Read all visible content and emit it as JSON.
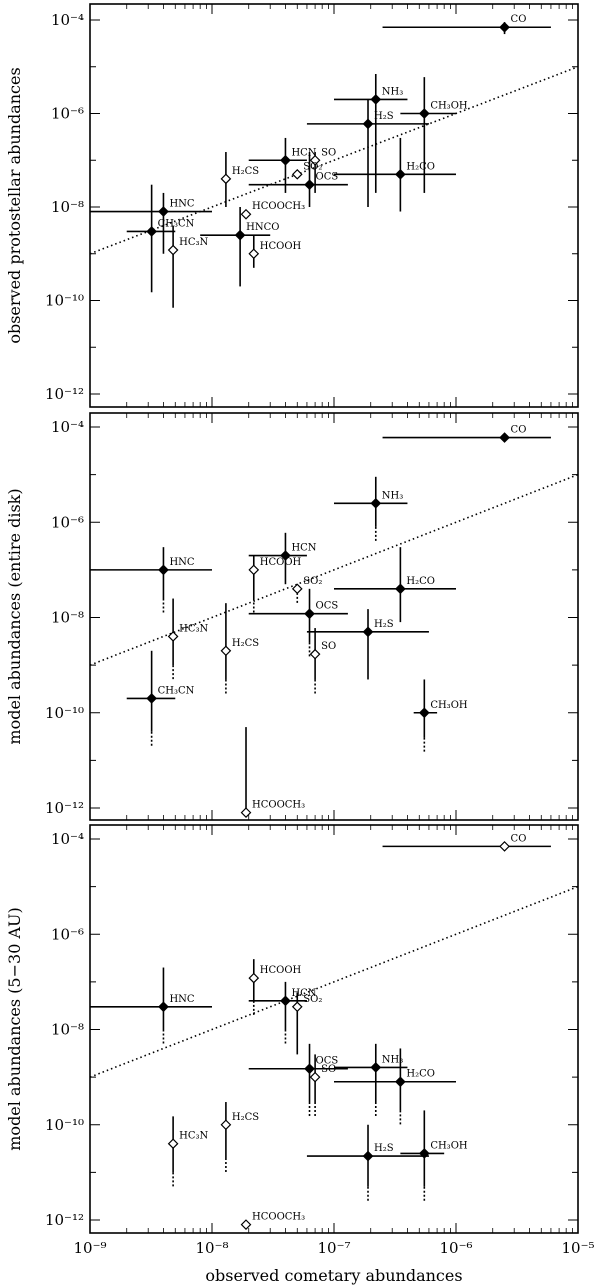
{
  "chart_data": [
    {
      "type": "scatter",
      "ylabel": "observed protostellar abundances",
      "xscale": "log",
      "yscale": "log",
      "xlim": [
        1e-09,
        1e-05
      ],
      "ylim": [
        1e-13,
        0.0001
      ],
      "reference_line": "y = x (dotted)",
      "points": [
        {
          "name": "CO",
          "x": 2.5e-06,
          "y": 7e-05,
          "xerr": [
            2.5e-07,
            6e-06
          ],
          "yerr": [
            5e-05,
            9e-05
          ],
          "open": false
        },
        {
          "name": "NH₃",
          "x": 2.2e-07,
          "y": 2e-06,
          "xerr": [
            1e-07,
            4e-07
          ],
          "yerr": [
            2e-08,
            7e-06
          ],
          "open": false
        },
        {
          "name": "H₂S",
          "x": 1.9e-07,
          "y": 6e-07,
          "xerr": [
            6e-08,
            6e-07
          ],
          "yerr": [
            1e-08,
            2e-06
          ],
          "open": false
        },
        {
          "name": "CH₃OH",
          "x": 5.5e-07,
          "y": 1e-06,
          "xerr": [
            3.5e-07,
            1e-06
          ],
          "yerr": [
            2e-08,
            6e-06
          ],
          "open": false
        },
        {
          "name": "H₂CO",
          "x": 3.5e-07,
          "y": 5e-08,
          "xerr": [
            1e-07,
            1e-06
          ],
          "yerr": [
            8e-09,
            3e-07
          ],
          "open": false
        },
        {
          "name": "HCN",
          "x": 4e-08,
          "y": 1e-07,
          "xerr": [
            2e-08,
            6e-08
          ],
          "yerr": [
            2e-08,
            3e-07
          ],
          "open": false
        },
        {
          "name": "SO",
          "x": 7e-08,
          "y": 1e-07,
          "xerr": null,
          "yerr": [
            2e-08,
            1.5e-07
          ],
          "open": true
        },
        {
          "name": "SO₂",
          "x": 5e-08,
          "y": 5e-08,
          "xerr": null,
          "yerr": null,
          "open": true
        },
        {
          "name": "OCS",
          "x": 6.3e-08,
          "y": 3e-08,
          "xerr": [
            2e-08,
            1.3e-07
          ],
          "yerr": [
            1e-08,
            1.5e-07
          ],
          "open": false
        },
        {
          "name": "H₂CS",
          "x": 1.3e-08,
          "y": 4e-08,
          "xerr": null,
          "yerr": [
            1e-08,
            1.5e-07
          ],
          "open": true
        },
        {
          "name": "HNC",
          "x": 4e-09,
          "y": 8e-09,
          "xerr": [
            1e-09,
            1e-08
          ],
          "yerr": [
            1e-09,
            2e-08
          ],
          "open": false
        },
        {
          "name": "CH₃CN",
          "x": 3.2e-09,
          "y": 3e-09,
          "xerr": [
            2e-09,
            5e-09
          ],
          "yerr": [
            1.5e-10,
            3e-08
          ],
          "open": false
        },
        {
          "name": "HC₃N",
          "x": 4.8e-09,
          "y": 1.2e-09,
          "xerr": null,
          "yerr": [
            7e-11,
            4e-09
          ],
          "open": true
        },
        {
          "name": "HCOOCH₃",
          "x": 1.9e-08,
          "y": 7e-09,
          "xerr": null,
          "yerr": null,
          "open": true
        },
        {
          "name": "HNCO",
          "x": 1.7e-08,
          "y": 2.5e-09,
          "xerr": [
            8e-09,
            3e-08
          ],
          "yerr": [
            2e-10,
            1e-08
          ],
          "open": false
        },
        {
          "name": "HCOOH",
          "x": 2.2e-08,
          "y": 1e-09,
          "xerr": null,
          "yerr": [
            5e-10,
            2.5e-09
          ],
          "open": true
        }
      ]
    },
    {
      "type": "scatter",
      "ylabel": "model abundances (entire disk)",
      "xscale": "log",
      "yscale": "log",
      "xlim": [
        1e-09,
        1e-05
      ],
      "ylim": [
        5e-13,
        0.0002
      ],
      "reference_line": "y = x (dotted)",
      "points": [
        {
          "name": "CO",
          "x": 2.5e-06,
          "y": 6e-05,
          "xerr": [
            2.5e-07,
            6e-06
          ],
          "yerr": null,
          "open": false
        },
        {
          "name": "NH₃",
          "x": 2.2e-07,
          "y": 2.5e-06,
          "xerr": [
            1e-07,
            4e-07
          ],
          "yerr": [
            8e-07,
            9e-06
          ],
          "open": false,
          "dotted_below": true
        },
        {
          "name": "HCN",
          "x": 4e-08,
          "y": 2e-07,
          "xerr": [
            2e-08,
            6e-08
          ],
          "yerr": [
            5e-08,
            6e-07
          ],
          "open": false
        },
        {
          "name": "SO₂",
          "x": 5e-08,
          "y": 4e-08,
          "xerr": null,
          "yerr": null,
          "open": true,
          "dotted_below": true
        },
        {
          "name": "HNC",
          "x": 4e-09,
          "y": 1e-07,
          "xerr": [
            1e-09,
            1e-08
          ],
          "yerr": [
            2.5e-08,
            3e-07
          ],
          "open": false,
          "dotted_below": true
        },
        {
          "name": "HCOOH",
          "x": 2.2e-08,
          "y": 1e-07,
          "xerr": null,
          "yerr": [
            2.5e-08,
            2e-07
          ],
          "open": true,
          "dotted_below": true
        },
        {
          "name": "H₂CO",
          "x": 3.5e-07,
          "y": 4e-08,
          "xerr": [
            1e-07,
            1e-06
          ],
          "yerr": [
            8e-09,
            3e-07
          ],
          "open": false
        },
        {
          "name": "OCS",
          "x": 6.3e-08,
          "y": 1.2e-08,
          "xerr": [
            2e-08,
            1.3e-07
          ],
          "yerr": [
            3e-09,
            4e-08
          ],
          "open": false,
          "dotted_below": true
        },
        {
          "name": "H₂S",
          "x": 1.9e-07,
          "y": 5e-09,
          "xerr": [
            6e-08,
            6e-07
          ],
          "yerr": [
            5e-10,
            1.5e-08
          ],
          "open": false
        },
        {
          "name": "SO",
          "x": 7e-08,
          "y": 1.7e-09,
          "xerr": null,
          "yerr": [
            5e-10,
            6e-09
          ],
          "open": true,
          "dotted_below": true
        },
        {
          "name": "HC₃N",
          "x": 4.8e-09,
          "y": 4e-09,
          "xerr": null,
          "yerr": [
            1e-09,
            2.5e-08
          ],
          "open": true,
          "dotted_below": true
        },
        {
          "name": "H₂CS",
          "x": 1.3e-08,
          "y": 2e-09,
          "xerr": null,
          "yerr": [
            5e-10,
            2e-08
          ],
          "open": true,
          "dotted_below": true
        },
        {
          "name": "CH₃CN",
          "x": 3.2e-09,
          "y": 2e-10,
          "xerr": [
            2e-09,
            5e-09
          ],
          "yerr": [
            4e-11,
            2e-09
          ],
          "open": false,
          "dotted_below": true
        },
        {
          "name": "CH₃OH",
          "x": 5.5e-07,
          "y": 1e-10,
          "xerr": [
            4.5e-07,
            7e-07
          ],
          "yerr": [
            3e-11,
            5e-10
          ],
          "open": false,
          "dotted_below": true
        },
        {
          "name": "HCOOCH₃",
          "x": 1.9e-08,
          "y": 8e-13,
          "xerr": null,
          "yerr": [
            8e-13,
            5e-11
          ],
          "open": true
        }
      ]
    },
    {
      "type": "scatter",
      "ylabel": "model abundances (5−30 AU)",
      "xlabel": "observed cometary abundances",
      "xscale": "log",
      "yscale": "log",
      "xlim": [
        1e-09,
        1e-05
      ],
      "ylim": [
        5e-13,
        0.0002
      ],
      "reference_line": "y = x (dotted)",
      "points": [
        {
          "name": "CO",
          "x": 2.5e-06,
          "y": 7e-05,
          "xerr": [
            2.5e-07,
            6e-06
          ],
          "yerr": null,
          "open": true
        },
        {
          "name": "HCOOH",
          "x": 2.2e-08,
          "y": 1.2e-07,
          "xerr": null,
          "yerr": [
            4e-08,
            3e-07
          ],
          "open": true,
          "dotted_below": true
        },
        {
          "name": "HNC",
          "x": 4e-09,
          "y": 3e-08,
          "xerr": [
            1e-09,
            1e-08
          ],
          "yerr": [
            1e-08,
            2e-07
          ],
          "open": false,
          "dotted_below": true
        },
        {
          "name": "HCN",
          "x": 4e-08,
          "y": 4e-08,
          "xerr": [
            2e-08,
            6e-08
          ],
          "yerr": [
            1e-08,
            1e-07
          ],
          "open": false,
          "dotted_below": true
        },
        {
          "name": "SO₂",
          "x": 5e-08,
          "y": 3e-08,
          "xerr": null,
          "yerr": [
            3e-09,
            6e-08
          ],
          "open": true
        },
        {
          "name": "NH₃",
          "x": 2.2e-07,
          "y": 1.6e-09,
          "xerr": [
            1e-07,
            4e-07
          ],
          "yerr": [
            3e-10,
            5e-09
          ],
          "open": false,
          "dotted_below": true
        },
        {
          "name": "H₂CO",
          "x": 3.5e-07,
          "y": 8e-10,
          "xerr": [
            1e-07,
            1e-06
          ],
          "yerr": [
            2e-10,
            4e-09
          ],
          "open": false,
          "dotted_below": true
        },
        {
          "name": "OCS",
          "x": 6.3e-08,
          "y": 1.5e-09,
          "xerr": [
            2e-08,
            1.3e-07
          ],
          "yerr": [
            3e-10,
            5e-09
          ],
          "open": false,
          "dotted_below": true
        },
        {
          "name": "SO",
          "x": 7e-08,
          "y": 1e-09,
          "xerr": null,
          "yerr": [
            3e-10,
            3e-09
          ],
          "open": true,
          "dotted_below": true
        },
        {
          "name": "H₂CS",
          "x": 1.3e-08,
          "y": 1e-10,
          "xerr": null,
          "yerr": [
            2e-11,
            3e-10
          ],
          "open": true,
          "dotted_below": true
        },
        {
          "name": "HC₃N",
          "x": 4.8e-09,
          "y": 4e-11,
          "xerr": null,
          "yerr": [
            1e-11,
            1.5e-10
          ],
          "open": true,
          "dotted_below": true
        },
        {
          "name": "H₂S",
          "x": 1.9e-07,
          "y": 2.2e-11,
          "xerr": [
            6e-08,
            6e-07
          ],
          "yerr": [
            5e-12,
            1e-10
          ],
          "open": false,
          "dotted_below": true
        },
        {
          "name": "CH₃OH",
          "x": 5.5e-07,
          "y": 2.5e-11,
          "xerr": [
            3.5e-07,
            8e-07
          ],
          "yerr": [
            5e-12,
            2e-10
          ],
          "open": false,
          "dotted_below": true
        },
        {
          "name": "HCOOCH₃",
          "x": 1.9e-08,
          "y": 8e-13,
          "xerr": null,
          "yerr": null,
          "open": true
        }
      ]
    }
  ],
  "x_tick_labels": [
    "10⁻⁹",
    "10⁻⁸",
    "10⁻⁷",
    "10⁻⁶",
    "10⁻⁵"
  ],
  "y_tick_labels": {
    "panel1": [
      "10⁻⁴",
      "10⁻⁶",
      "10⁻⁸",
      "10⁻¹⁰",
      "10⁻¹²"
    ],
    "panel2": [
      "10⁻⁴",
      "10⁻⁶",
      "10⁻⁸",
      "10⁻¹⁰",
      "10⁻¹²"
    ],
    "panel3": [
      "10⁻⁴",
      "10⁻⁶",
      "10⁻⁸",
      "10⁻¹⁰",
      "10⁻¹²"
    ]
  },
  "colors": {
    "ink": "#000000",
    "background": "#ffffff"
  }
}
